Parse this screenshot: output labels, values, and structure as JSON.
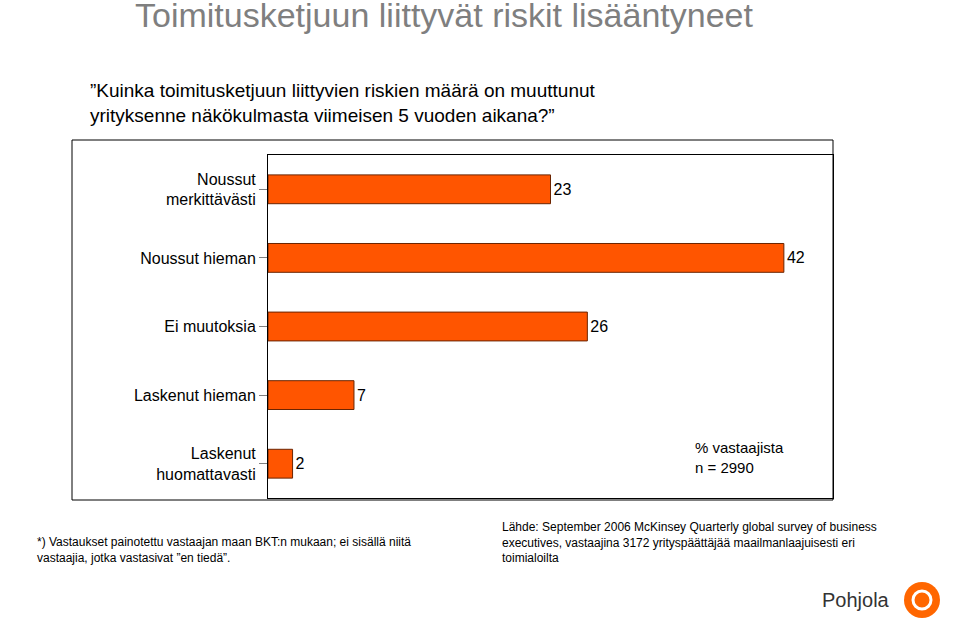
{
  "chart_data": {
    "type": "bar",
    "orientation": "horizontal",
    "title": "Toimitusketjuun liittyvät riskit lisääntyneet",
    "subtitle": "”Kuinka toimitusketjuun liittyvien riskien määrä on muuttunut yrityksenne näkökulmasta viimeisen 5 vuoden aikana?”",
    "categories": [
      "Noussut merkittävästi",
      "Noussut hieman",
      "Ei muutoksia",
      "Laskenut hieman",
      "Laskenut huomattavasti"
    ],
    "values": [
      23,
      42,
      26,
      7,
      2
    ],
    "color": "#ff5500",
    "data_labels": true,
    "tick_labels": "y",
    "xlim": [
      0,
      46
    ],
    "grid": false,
    "annotations": [
      "% vastaajista",
      "n = 2990"
    ],
    "footnote": "*) Vastaukset painotettu vastaajan maan BKT:n mukaan; ei sisällä niitä vastaajia, jotka vastasivat ”en tiedä”.",
    "source": "Lähde: September 2006 McKinsey Quarterly global survey of business executives, vastaajina 3172 yrityspäättäjää maailmanlaajuisesti eri toimialoilta",
    "logo": "Pohjola"
  }
}
